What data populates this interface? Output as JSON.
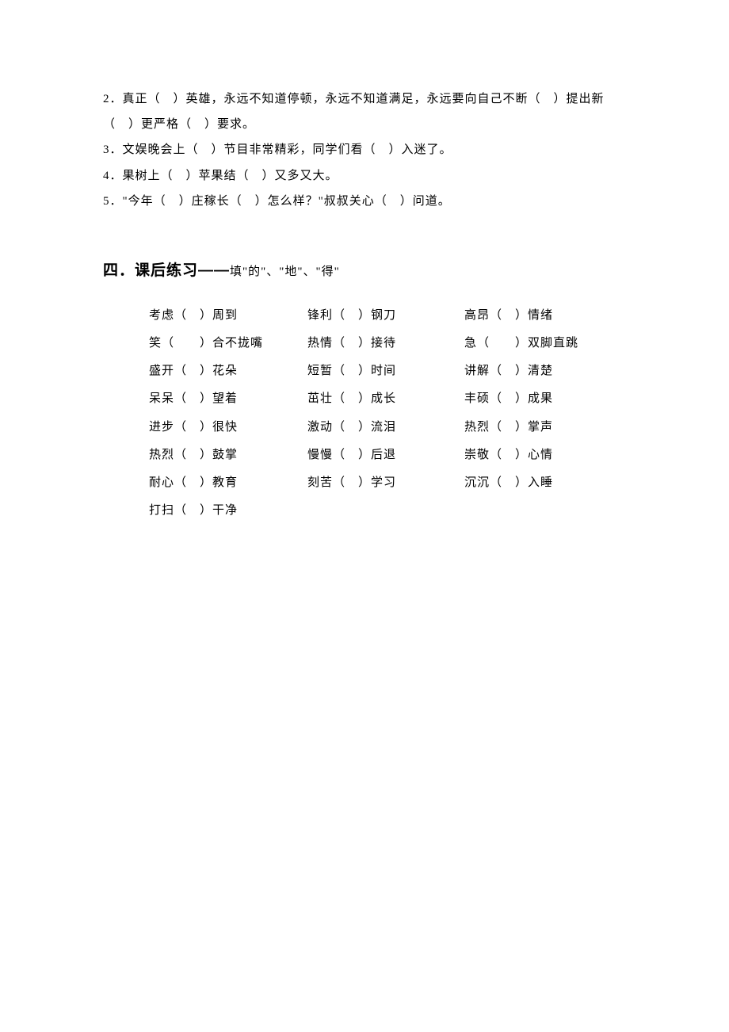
{
  "sentences": {
    "s2": "2．真正（　）英雄，永远不知道停顿，永远不知道满足，永远要向自己不断（　）提出新（　）更严格（　）要求。",
    "s3": "3．文娱晚会上（　）节目非常精彩，同学们看（　）入迷了。",
    "s4": "4．果树上（　）苹果结（　）又多又大。",
    "s5": "5．\"今年（　）庄稼长（　）怎么样？\"叔叔关心（　）问道。"
  },
  "section4": {
    "heading_bold": "四．课后练习——",
    "heading_rest": "填\"的\"、\"地\"、\"得\""
  },
  "exercise": {
    "rows": [
      [
        "考虑（　）周到",
        "锋利（　）钢刀",
        "高昂（　）情绪"
      ],
      [
        "笑（　　）合不拢嘴",
        "热情（　）接待",
        "急（　　）双脚直跳"
      ],
      [
        "盛开（　）花朵",
        "短暂（　）时间",
        "讲解（　）清楚"
      ],
      [
        "呆呆（　）望着",
        "茁壮（　）成长",
        "丰硕（　）成果"
      ],
      [
        "进步（　）很快",
        "激动（　）流泪",
        "热烈（　）掌声"
      ],
      [
        "热烈（　）鼓掌",
        "慢慢（　）后退",
        "崇敬（　）心情"
      ],
      [
        "耐心（　）教育",
        "刻苦（　）学习",
        "沉沉（　）入睡"
      ],
      [
        "打扫（　）干净",
        "",
        ""
      ]
    ]
  }
}
